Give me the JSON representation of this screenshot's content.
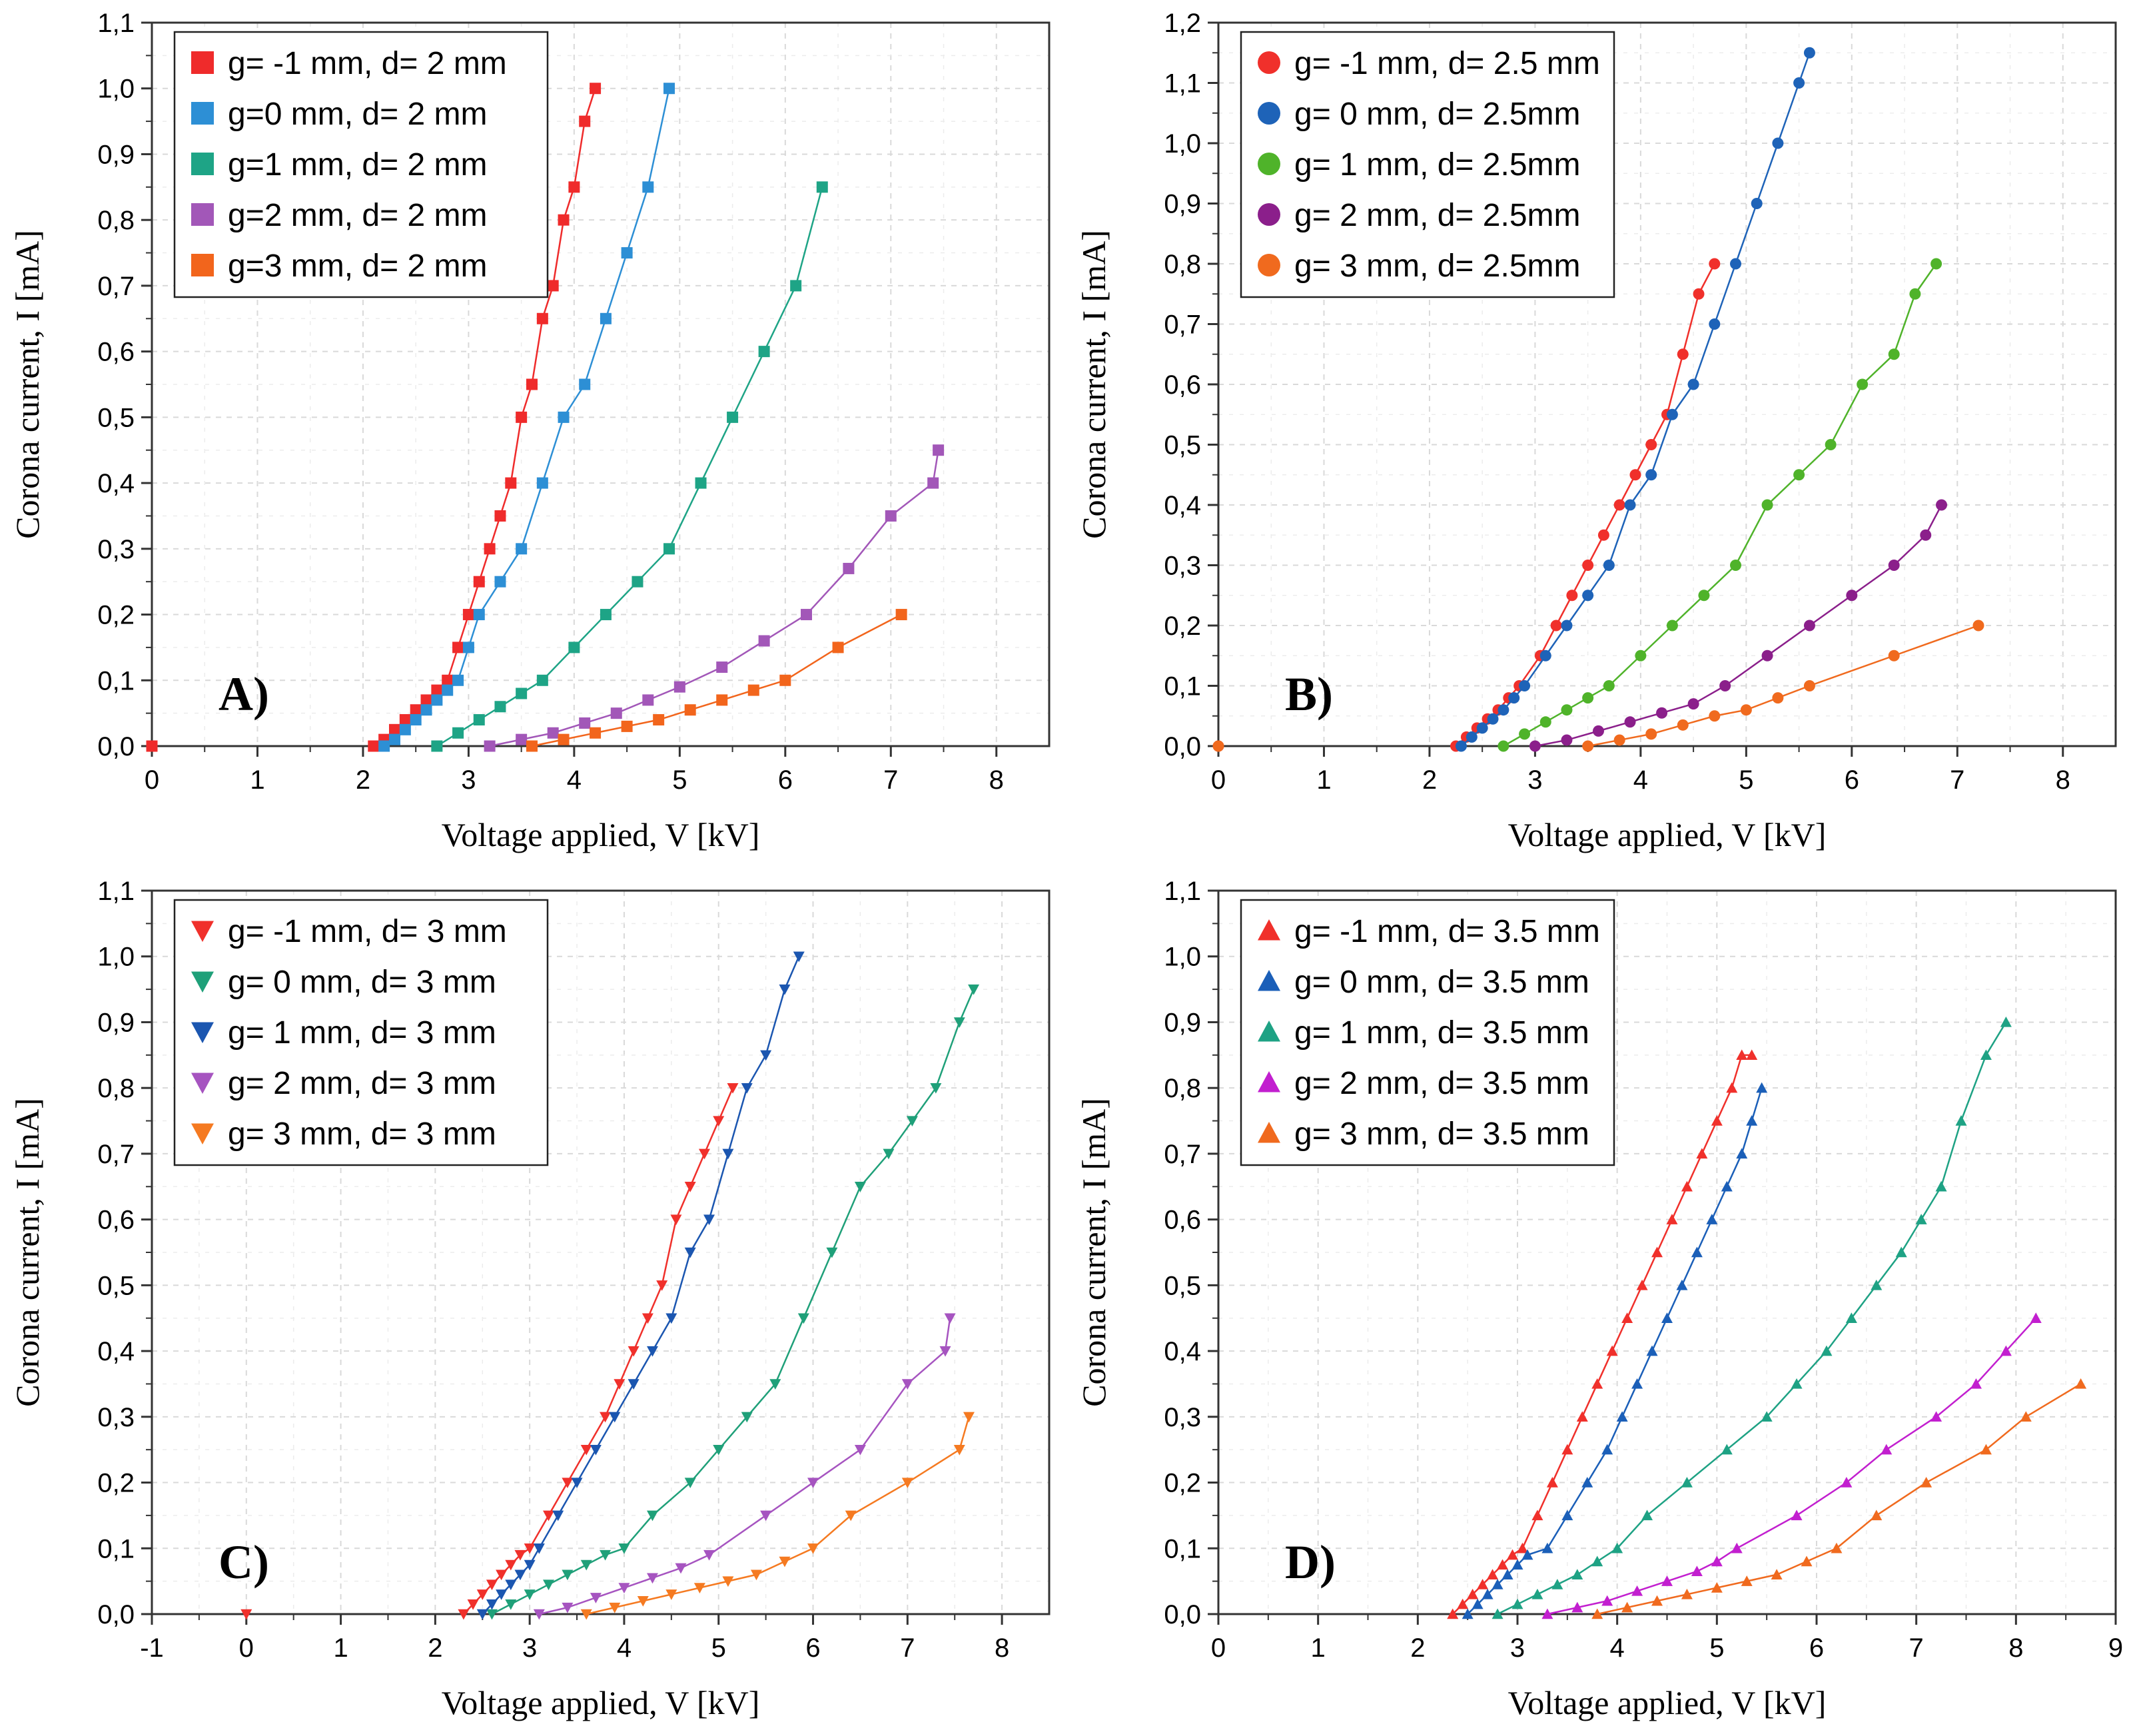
{
  "figure": {
    "panel_count": 4
  },
  "chart_data": [
    {
      "id": "A",
      "type": "scatter",
      "panel_label": "A)",
      "marker": "square",
      "xlabel": "Voltage applied, V [kV]",
      "ylabel": "Corona current, I [mA]",
      "xlim": [
        0,
        8.5
      ],
      "ylim": [
        0,
        1.1
      ],
      "xticks": [
        0,
        1,
        2,
        3,
        4,
        5,
        6,
        7,
        8
      ],
      "yticks": [
        0.0,
        0.1,
        0.2,
        0.3,
        0.4,
        0.5,
        0.6,
        0.7,
        0.8,
        0.9,
        1.0,
        1.1
      ],
      "x_tick_labels": [
        "0",
        "1",
        "2",
        "3",
        "4",
        "5",
        "6",
        "7",
        "8"
      ],
      "y_tick_labels": [
        "0,0",
        "0,1",
        "0,2",
        "0,3",
        "0,4",
        "0,5",
        "0,6",
        "0,7",
        "0,8",
        "0,9",
        "1,0",
        "1,1"
      ],
      "grid": true,
      "legend_position": "top-left",
      "series": [
        {
          "name": "g= -1 mm, d= 2 mm",
          "color": "#ef2b2b",
          "x": [
            0,
            2.1,
            2.2,
            2.3,
            2.4,
            2.5,
            2.6,
            2.7,
            2.8,
            2.9,
            3.0,
            3.1,
            3.2,
            3.3,
            3.4,
            3.5,
            3.6,
            3.7,
            3.8,
            3.9,
            4.0,
            4.1,
            4.2
          ],
          "y": [
            0,
            0,
            0.01,
            0.025,
            0.04,
            0.055,
            0.07,
            0.085,
            0.1,
            0.15,
            0.2,
            0.25,
            0.3,
            0.35,
            0.4,
            0.5,
            0.55,
            0.65,
            0.7,
            0.8,
            0.85,
            0.95,
            1.0
          ]
        },
        {
          "name": "g=0 mm, d= 2 mm",
          "color": "#2d8fd5",
          "x": [
            2.2,
            2.3,
            2.4,
            2.5,
            2.6,
            2.7,
            2.8,
            2.9,
            3.0,
            3.1,
            3.3,
            3.5,
            3.7,
            3.9,
            4.1,
            4.3,
            4.5,
            4.7,
            4.9
          ],
          "y": [
            0,
            0.01,
            0.025,
            0.04,
            0.055,
            0.07,
            0.085,
            0.1,
            0.15,
            0.2,
            0.25,
            0.3,
            0.4,
            0.5,
            0.55,
            0.65,
            0.75,
            0.85,
            1.0
          ]
        },
        {
          "name": "g=1 mm, d= 2 mm",
          "color": "#1ea486",
          "x": [
            2.7,
            2.9,
            3.1,
            3.3,
            3.5,
            3.7,
            4.0,
            4.3,
            4.6,
            4.9,
            5.2,
            5.5,
            5.8,
            6.1,
            6.35
          ],
          "y": [
            0,
            0.02,
            0.04,
            0.06,
            0.08,
            0.1,
            0.15,
            0.2,
            0.25,
            0.3,
            0.4,
            0.5,
            0.6,
            0.7,
            0.85
          ]
        },
        {
          "name": "g=2 mm, d= 2 mm",
          "color": "#a257b8",
          "x": [
            3.2,
            3.5,
            3.8,
            4.1,
            4.4,
            4.7,
            5.0,
            5.4,
            5.8,
            6.2,
            6.6,
            7.0,
            7.4,
            7.45
          ],
          "y": [
            0,
            0.01,
            0.02,
            0.035,
            0.05,
            0.07,
            0.09,
            0.12,
            0.16,
            0.2,
            0.27,
            0.35,
            0.4,
            0.45
          ]
        },
        {
          "name": "g=3 mm, d= 2 mm",
          "color": "#f2651c",
          "x": [
            3.6,
            3.9,
            4.2,
            4.5,
            4.8,
            5.1,
            5.4,
            5.7,
            6.0,
            6.5,
            7.1
          ],
          "y": [
            0,
            0.01,
            0.02,
            0.03,
            0.04,
            0.055,
            0.07,
            0.085,
            0.1,
            0.15,
            0.2
          ]
        }
      ]
    },
    {
      "id": "B",
      "type": "scatter",
      "panel_label": "B)",
      "marker": "circle",
      "xlabel": "Voltage applied, V [kV]",
      "ylabel": "Corona current, I [mA]",
      "xlim": [
        0,
        8.5
      ],
      "ylim": [
        0,
        1.2
      ],
      "xticks": [
        0,
        1,
        2,
        3,
        4,
        5,
        6,
        7,
        8
      ],
      "yticks": [
        0.0,
        0.1,
        0.2,
        0.3,
        0.4,
        0.5,
        0.6,
        0.7,
        0.8,
        0.9,
        1.0,
        1.1,
        1.2
      ],
      "x_tick_labels": [
        "0",
        "1",
        "2",
        "3",
        "4",
        "5",
        "6",
        "7",
        "8"
      ],
      "y_tick_labels": [
        "0,0",
        "0,1",
        "0,2",
        "0,3",
        "0,4",
        "0,5",
        "0,6",
        "0,7",
        "0,8",
        "0,9",
        "1,0",
        "1,1",
        "1,2"
      ],
      "grid": true,
      "legend_position": "top-left",
      "series": [
        {
          "name": "g= -1 mm, d= 2.5 mm",
          "color": "#f0302b",
          "x": [
            0,
            2.25,
            2.35,
            2.45,
            2.55,
            2.65,
            2.75,
            2.85,
            3.05,
            3.2,
            3.35,
            3.5,
            3.65,
            3.8,
            3.95,
            4.1,
            4.25,
            4.4,
            4.55,
            4.7
          ],
          "y": [
            0,
            0,
            0.015,
            0.03,
            0.045,
            0.06,
            0.08,
            0.1,
            0.15,
            0.2,
            0.25,
            0.3,
            0.35,
            0.4,
            0.45,
            0.5,
            0.55,
            0.65,
            0.75,
            0.8
          ]
        },
        {
          "name": "g= 0 mm, d= 2.5mm",
          "color": "#1e63b8",
          "x": [
            2.3,
            2.4,
            2.5,
            2.6,
            2.7,
            2.8,
            2.9,
            3.1,
            3.3,
            3.5,
            3.7,
            3.9,
            4.1,
            4.3,
            4.5,
            4.7,
            4.9,
            5.1,
            5.3,
            5.5,
            5.6
          ],
          "y": [
            0,
            0.015,
            0.03,
            0.045,
            0.06,
            0.08,
            0.1,
            0.15,
            0.2,
            0.25,
            0.3,
            0.4,
            0.45,
            0.55,
            0.6,
            0.7,
            0.8,
            0.9,
            1.0,
            1.1,
            1.15
          ]
        },
        {
          "name": "g= 1 mm, d= 2.5mm",
          "color": "#4fb32a",
          "x": [
            2.7,
            2.9,
            3.1,
            3.3,
            3.5,
            3.7,
            4.0,
            4.3,
            4.6,
            4.9,
            5.2,
            5.5,
            5.8,
            6.1,
            6.4,
            6.6,
            6.8
          ],
          "y": [
            0,
            0.02,
            0.04,
            0.06,
            0.08,
            0.1,
            0.15,
            0.2,
            0.25,
            0.3,
            0.4,
            0.45,
            0.5,
            0.6,
            0.65,
            0.75,
            0.8
          ]
        },
        {
          "name": "g= 2 mm, d= 2.5mm",
          "color": "#8b1f8b",
          "x": [
            3.0,
            3.3,
            3.6,
            3.9,
            4.2,
            4.5,
            4.8,
            5.2,
            5.6,
            6.0,
            6.4,
            6.7,
            6.85
          ],
          "y": [
            0,
            0.01,
            0.025,
            0.04,
            0.055,
            0.07,
            0.1,
            0.15,
            0.2,
            0.25,
            0.3,
            0.35,
            0.4
          ]
        },
        {
          "name": "g= 3 mm, d= 2.5mm",
          "color": "#f06a1e",
          "x": [
            0,
            3.5,
            3.8,
            4.1,
            4.4,
            4.7,
            5.0,
            5.3,
            5.6,
            6.4,
            7.2
          ],
          "y": [
            0,
            0,
            0.01,
            0.02,
            0.035,
            0.05,
            0.06,
            0.08,
            0.1,
            0.15,
            0.2
          ]
        }
      ]
    },
    {
      "id": "C",
      "type": "scatter",
      "panel_label": "C)",
      "marker": "triangle-down",
      "xlabel": "Voltage applied, V [kV]",
      "ylabel": "Corona current, I [mA]",
      "xlim": [
        -1,
        8.5
      ],
      "ylim": [
        0,
        1.1
      ],
      "xticks": [
        -1,
        0,
        1,
        2,
        3,
        4,
        5,
        6,
        7,
        8
      ],
      "yticks": [
        0.0,
        0.1,
        0.2,
        0.3,
        0.4,
        0.5,
        0.6,
        0.7,
        0.8,
        0.9,
        1.0,
        1.1
      ],
      "x_tick_labels": [
        "-1",
        "0",
        "1",
        "2",
        "3",
        "4",
        "5",
        "6",
        "7",
        "8"
      ],
      "y_tick_labels": [
        "0,0",
        "0,1",
        "0,2",
        "0,3",
        "0,4",
        "0,5",
        "0,6",
        "0,7",
        "0,8",
        "0,9",
        "1,0",
        "1,1"
      ],
      "grid": true,
      "legend_position": "top-left",
      "series": [
        {
          "name": "g= -1 mm, d= 3 mm",
          "color": "#f0302b",
          "x": [
            0,
            2.3,
            2.4,
            2.5,
            2.6,
            2.7,
            2.8,
            2.9,
            3.0,
            3.2,
            3.4,
            3.6,
            3.8,
            3.95,
            4.1,
            4.25,
            4.4,
            4.55,
            4.7,
            4.85,
            5.0,
            5.15
          ],
          "y": [
            0,
            0,
            0.015,
            0.03,
            0.045,
            0.06,
            0.075,
            0.09,
            0.1,
            0.15,
            0.2,
            0.25,
            0.3,
            0.35,
            0.4,
            0.45,
            0.5,
            0.6,
            0.65,
            0.7,
            0.75,
            0.8
          ]
        },
        {
          "name": "g= 0 mm, d= 3 mm",
          "color": "#1fa079",
          "x": [
            2.6,
            2.8,
            3.0,
            3.2,
            3.4,
            3.6,
            3.8,
            4.0,
            4.3,
            4.7,
            5.0,
            5.3,
            5.6,
            5.9,
            6.2,
            6.5,
            6.8,
            7.05,
            7.3,
            7.55,
            7.7
          ],
          "y": [
            0,
            0.015,
            0.03,
            0.045,
            0.06,
            0.075,
            0.09,
            0.1,
            0.15,
            0.2,
            0.25,
            0.3,
            0.35,
            0.45,
            0.55,
            0.65,
            0.7,
            0.75,
            0.8,
            0.9,
            0.95
          ]
        },
        {
          "name": "g= 1 mm, d= 3 mm",
          "color": "#1b56b0",
          "x": [
            2.5,
            2.6,
            2.7,
            2.8,
            2.9,
            3.0,
            3.1,
            3.3,
            3.5,
            3.7,
            3.9,
            4.1,
            4.3,
            4.5,
            4.7,
            4.9,
            5.1,
            5.3,
            5.5,
            5.7,
            5.85
          ],
          "y": [
            0,
            0.015,
            0.03,
            0.045,
            0.06,
            0.075,
            0.1,
            0.15,
            0.2,
            0.25,
            0.3,
            0.35,
            0.4,
            0.45,
            0.55,
            0.6,
            0.7,
            0.8,
            0.85,
            0.95,
            1.0
          ]
        },
        {
          "name": "g= 2 mm, d= 3 mm",
          "color": "#a654c0",
          "x": [
            3.1,
            3.4,
            3.7,
            4.0,
            4.3,
            4.6,
            4.9,
            5.5,
            6.0,
            6.5,
            7.0,
            7.4,
            7.45
          ],
          "y": [
            0,
            0.01,
            0.025,
            0.04,
            0.055,
            0.07,
            0.09,
            0.15,
            0.2,
            0.25,
            0.35,
            0.4,
            0.45
          ]
        },
        {
          "name": "g= 3 mm, d= 3 mm",
          "color": "#f57a21",
          "x": [
            3.6,
            3.9,
            4.2,
            4.5,
            4.8,
            5.1,
            5.4,
            5.7,
            6.0,
            6.4,
            7.0,
            7.55,
            7.65
          ],
          "y": [
            0,
            0.01,
            0.02,
            0.03,
            0.04,
            0.05,
            0.06,
            0.08,
            0.1,
            0.15,
            0.2,
            0.25,
            0.3
          ]
        }
      ]
    },
    {
      "id": "D",
      "type": "scatter",
      "panel_label": "D)",
      "marker": "triangle-up",
      "xlabel": "Voltage applied, V [kV]",
      "ylabel": "Corona current, I [mA]",
      "xlim": [
        0,
        9
      ],
      "ylim": [
        0,
        1.1
      ],
      "xticks": [
        0,
        1,
        2,
        3,
        4,
        5,
        6,
        7,
        8,
        9
      ],
      "yticks": [
        0.0,
        0.1,
        0.2,
        0.3,
        0.4,
        0.5,
        0.6,
        0.7,
        0.8,
        0.9,
        1.0,
        1.1
      ],
      "x_tick_labels": [
        "0",
        "1",
        "2",
        "3",
        "4",
        "5",
        "6",
        "7",
        "8",
        "9"
      ],
      "y_tick_labels": [
        "0,0",
        "0,1",
        "0,2",
        "0,3",
        "0,4",
        "0,5",
        "0,6",
        "0,7",
        "0,8",
        "0,9",
        "1,0",
        "1,1"
      ],
      "grid": true,
      "legend_position": "top-left",
      "series": [
        {
          "name": "g= -1 mm, d= 3.5 mm",
          "color": "#f0302b",
          "x": [
            2.35,
            2.45,
            2.55,
            2.65,
            2.75,
            2.85,
            2.95,
            3.05,
            3.2,
            3.35,
            3.5,
            3.65,
            3.8,
            3.95,
            4.1,
            4.25,
            4.4,
            4.55,
            4.7,
            4.85,
            5.0,
            5.15,
            5.25,
            5.35
          ],
          "y": [
            0,
            0.015,
            0.03,
            0.045,
            0.06,
            0.075,
            0.09,
            0.1,
            0.15,
            0.2,
            0.25,
            0.3,
            0.35,
            0.4,
            0.45,
            0.5,
            0.55,
            0.6,
            0.65,
            0.7,
            0.75,
            0.8,
            0.85,
            0.85
          ]
        },
        {
          "name": "g= 0 mm, d= 3.5 mm",
          "color": "#1b5fb8",
          "x": [
            2.5,
            2.6,
            2.7,
            2.8,
            2.9,
            3.0,
            3.1,
            3.3,
            3.5,
            3.7,
            3.9,
            4.05,
            4.2,
            4.35,
            4.5,
            4.65,
            4.8,
            4.95,
            5.1,
            5.25,
            5.35,
            5.45
          ],
          "y": [
            0,
            0.015,
            0.03,
            0.045,
            0.06,
            0.075,
            0.09,
            0.1,
            0.15,
            0.2,
            0.25,
            0.3,
            0.35,
            0.4,
            0.45,
            0.5,
            0.55,
            0.6,
            0.65,
            0.7,
            0.75,
            0.8
          ]
        },
        {
          "name": "g= 1 mm, d= 3.5 mm",
          "color": "#1ea284",
          "x": [
            2.8,
            3.0,
            3.2,
            3.4,
            3.6,
            3.8,
            4.0,
            4.3,
            4.7,
            5.1,
            5.5,
            5.8,
            6.1,
            6.35,
            6.6,
            6.85,
            7.05,
            7.25,
            7.45,
            7.7,
            7.9
          ],
          "y": [
            0,
            0.015,
            0.03,
            0.045,
            0.06,
            0.08,
            0.1,
            0.15,
            0.2,
            0.25,
            0.3,
            0.35,
            0.4,
            0.45,
            0.5,
            0.55,
            0.6,
            0.65,
            0.75,
            0.85,
            0.9
          ]
        },
        {
          "name": "g= 2 mm, d= 3.5 mm",
          "color": "#c21fcf",
          "x": [
            3.3,
            3.6,
            3.9,
            4.2,
            4.5,
            4.8,
            5.0,
            5.2,
            5.8,
            6.3,
            6.7,
            7.2,
            7.6,
            7.9,
            8.2
          ],
          "y": [
            0,
            0.01,
            0.02,
            0.035,
            0.05,
            0.065,
            0.08,
            0.1,
            0.15,
            0.2,
            0.25,
            0.3,
            0.35,
            0.4,
            0.45
          ]
        },
        {
          "name": "g= 3 mm, d= 3.5 mm",
          "color": "#f06a1e",
          "x": [
            3.8,
            4.1,
            4.4,
            4.7,
            5.0,
            5.3,
            5.6,
            5.9,
            6.2,
            6.6,
            7.1,
            7.7,
            8.1,
            8.65
          ],
          "y": [
            0,
            0.01,
            0.02,
            0.03,
            0.04,
            0.05,
            0.06,
            0.08,
            0.1,
            0.15,
            0.2,
            0.25,
            0.3,
            0.35
          ]
        }
      ]
    }
  ]
}
